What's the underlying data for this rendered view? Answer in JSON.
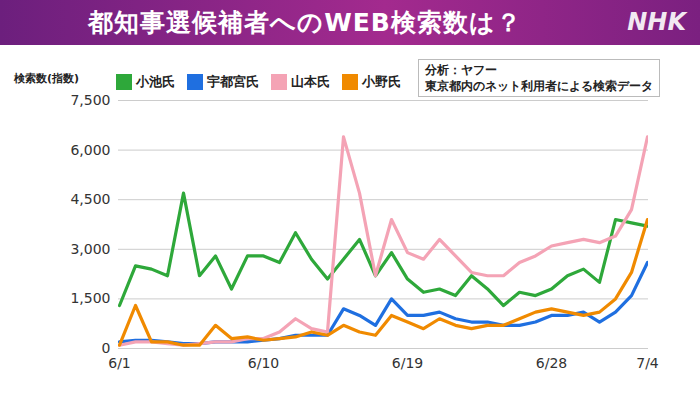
{
  "chart_data": {
    "type": "line",
    "title": "都知事選候補者へのWEB検索数は？",
    "logo": "NHK",
    "y_label": "検索数(指数)",
    "annotations": [
      "分析：ヤフー",
      "東京都内のネット利用者による検索データ"
    ],
    "categories": [
      "6/1",
      null,
      null,
      null,
      null,
      null,
      null,
      null,
      null,
      "6/10",
      null,
      null,
      null,
      null,
      null,
      null,
      null,
      null,
      "6/19",
      null,
      null,
      null,
      null,
      null,
      null,
      null,
      null,
      "6/28",
      null,
      null,
      null,
      null,
      null,
      "7/4"
    ],
    "ylim": [
      0,
      7500
    ],
    "yticks": [
      0,
      {
        "value": 1500,
        "label": "1,500"
      },
      {
        "value": 3000,
        "label": "3,000"
      },
      {
        "value": 4500,
        "label": "4,500"
      },
      {
        "value": 6000,
        "label": "6,000"
      },
      {
        "value": 7500,
        "label": "7,500"
      }
    ],
    "grid": true,
    "legend": "top",
    "series": [
      {
        "name": "小池氏",
        "color": "#2ea83a",
        "values": [
          1300,
          2500,
          2400,
          2200,
          4700,
          2200,
          2800,
          1800,
          2800,
          2800,
          2600,
          3500,
          2700,
          2100,
          2700,
          3300,
          2200,
          2900,
          2100,
          1700,
          1800,
          1600,
          2200,
          1800,
          1300,
          1700,
          1600,
          1800,
          2200,
          2400,
          2000,
          3900,
          3800,
          3700
        ]
      },
      {
        "name": "宇都宮氏",
        "color": "#1f6fe0",
        "values": [
          200,
          250,
          250,
          200,
          150,
          150,
          200,
          200,
          200,
          250,
          300,
          400,
          400,
          400,
          1200,
          1000,
          700,
          1500,
          1000,
          1000,
          1100,
          900,
          800,
          800,
          700,
          700,
          800,
          1000,
          1000,
          1100,
          800,
          1100,
          1600,
          2600
        ]
      },
      {
        "name": "山本氏",
        "color": "#f4a3b5",
        "values": [
          100,
          200,
          200,
          150,
          100,
          150,
          200,
          200,
          300,
          300,
          500,
          900,
          600,
          500,
          6400,
          4700,
          2200,
          3900,
          2900,
          2700,
          3300,
          2800,
          2300,
          2200,
          2200,
          2600,
          2800,
          3100,
          3200,
          3300,
          3200,
          3400,
          4200,
          6400
        ]
      },
      {
        "name": "小野氏",
        "color": "#f08a00",
        "values": [
          100,
          1300,
          200,
          200,
          100,
          100,
          700,
          300,
          350,
          250,
          300,
          350,
          500,
          400,
          700,
          500,
          400,
          1000,
          800,
          600,
          900,
          700,
          600,
          700,
          700,
          900,
          1100,
          1200,
          1100,
          1000,
          1100,
          1500,
          2300,
          3900
        ]
      }
    ]
  }
}
